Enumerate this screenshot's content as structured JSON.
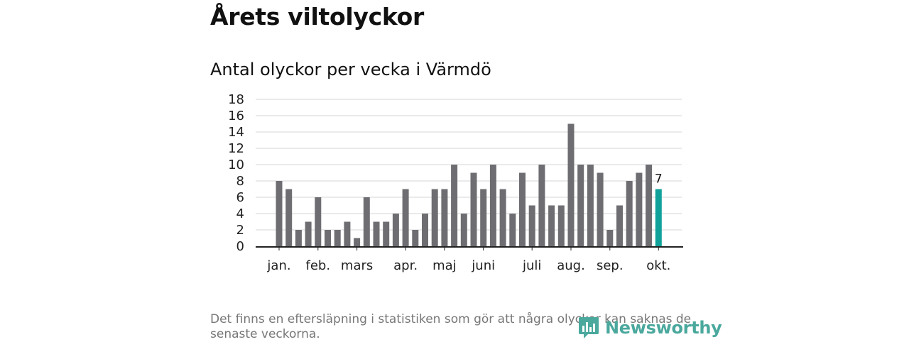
{
  "title": "Årets viltolyckor",
  "subtitle": "Antal olyckor per vecka i Värmdö",
  "footnote": "Det finns en eftersläpning i statistiken som gör att några olyckor kan saknas de senaste veckorna.",
  "logo": {
    "text": "Newsworthy",
    "icon": "newsworthy-logo-icon"
  },
  "colors": {
    "bar": "#6e6d71",
    "highlight": "#10a29a",
    "grid": "#d6d6d6",
    "axis": "#222222"
  },
  "chart_data": {
    "type": "bar",
    "title": "Antal olyckor per vecka i Värmdö",
    "xlabel": "",
    "ylabel": "",
    "ylim": [
      0,
      18
    ],
    "yticks": [
      0,
      2,
      4,
      6,
      8,
      10,
      12,
      14,
      16,
      18
    ],
    "grid": true,
    "weeks": [
      1,
      2,
      3,
      4,
      5,
      6,
      7,
      8,
      9,
      10,
      11,
      12,
      13,
      14,
      15,
      16,
      17,
      18,
      19,
      20,
      21,
      22,
      23,
      24,
      25,
      26,
      27,
      28,
      29,
      30,
      31,
      32,
      33,
      34,
      35,
      36,
      37,
      38,
      39,
      40
    ],
    "values": [
      8,
      7,
      2,
      3,
      6,
      2,
      2,
      3,
      1,
      6,
      3,
      3,
      4,
      7,
      2,
      4,
      7,
      7,
      10,
      4,
      9,
      7,
      10,
      7,
      4,
      9,
      5,
      10,
      5,
      5,
      15,
      10,
      10,
      9,
      2,
      5,
      8,
      9,
      10,
      7
    ],
    "highlight_index": 39,
    "highlight_label": "7",
    "month_labels": [
      {
        "label": "jan.",
        "week": 1
      },
      {
        "label": "feb.",
        "week": 5
      },
      {
        "label": "mars",
        "week": 9
      },
      {
        "label": "apr.",
        "week": 14
      },
      {
        "label": "maj",
        "week": 18
      },
      {
        "label": "juni",
        "week": 22
      },
      {
        "label": "juli",
        "week": 27
      },
      {
        "label": "aug.",
        "week": 31
      },
      {
        "label": "sep.",
        "week": 35
      },
      {
        "label": "okt.",
        "week": 40
      }
    ]
  }
}
